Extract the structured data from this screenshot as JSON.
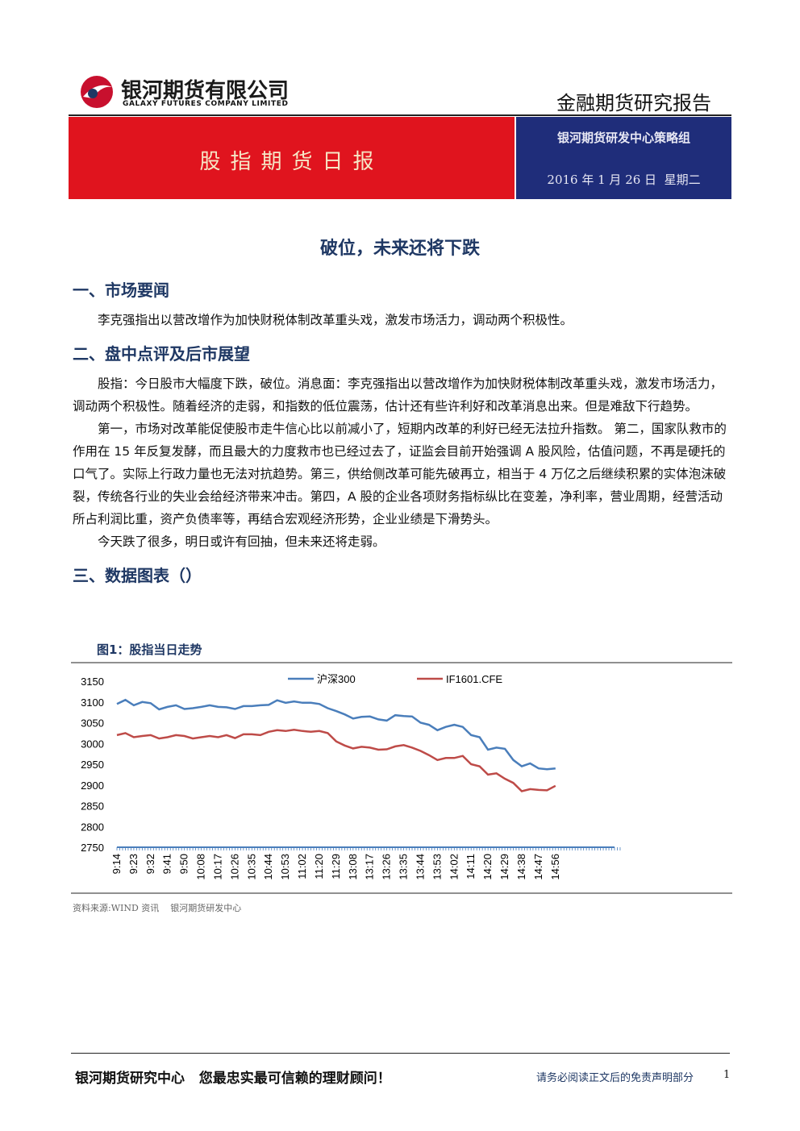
{
  "header": {
    "company_cn": "银河期货有限公司",
    "company_en": "GALAXY FUTURES COMPANY LIMITED",
    "report_type": "金融期货研究报告"
  },
  "banner": {
    "title": "股指期货日报",
    "group": "银河期货研发中心策略组",
    "date": "2016 年 1 月 26 日  星期二"
  },
  "headline": "破位，未来还将下跌",
  "sections": [
    {
      "heading": "一、市场要闻",
      "paragraphs": [
        "李克强指出以营改增作为加快财税体制改革重头戏，激发市场活力，调动两个积极性。"
      ]
    },
    {
      "heading": "二、盘中点评及后市展望",
      "paragraphs": [
        "股指：今日股市大幅度下跌，破位。消息面：李克强指出以营改增作为加快财税体制改革重头戏，激发市场活力，调动两个积极性。随着经济的走弱，和指数的低位震荡，估计还有些许利好和改革消息出来。但是难敌下行趋势。",
        "第一，市场对改革能促使股市走牛信心比以前减小了，短期内改革的利好已经无法拉升指数。 第二，国家队救市的作用在 15 年反复发酵，而且最大的力度救市也已经过去了，证监会目前开始强调 A 股风险，估值问题，不再是硬托的口气了。实际上行政力量也无法对抗趋势。第三，供给侧改革可能先破再立，相当于 4 万亿之后继续积累的实体泡沫破裂，传统各行业的失业会给经济带来冲击。第四，A 股的企业各项财务指标纵比在变差，净利率，营业周期，经营活动所占利润比重，资产负债率等，再结合宏观经济形势，企业业绩是下滑势头。",
        "今天跌了很多，明日或许有回抽，但未来还将走弱。"
      ]
    },
    {
      "heading": "三、数据图表（）",
      "paragraphs": []
    }
  ],
  "figure": {
    "caption": "图1：股指当日走势",
    "source": "资料来源:WIND 资讯    银河期货研发中心"
  },
  "chart_data": {
    "type": "line",
    "categories": [
      "9:14",
      null,
      "9:23",
      null,
      "9:32",
      null,
      "9:41",
      null,
      "9:50",
      null,
      "10:08",
      null,
      "10:17",
      null,
      "10:26",
      null,
      "10:35",
      null,
      "10:44",
      null,
      "10:53",
      null,
      "11:02",
      null,
      "11:20",
      null,
      "11:29",
      null,
      "13:08",
      null,
      "13:17",
      null,
      "13:26",
      null,
      "13:35",
      null,
      "13:44",
      null,
      "13:53",
      null,
      "14:02",
      null,
      "14:11",
      null,
      "14:20",
      null,
      "14:29",
      null,
      "14:38",
      null,
      "14:47",
      null,
      "14:56",
      null,
      null,
      null,
      null,
      null,
      null,
      null
    ],
    "series": [
      {
        "name": "沪深300",
        "color": "#4a7ebb",
        "values": [
          3095,
          3105,
          3092,
          3100,
          3097,
          3082,
          3088,
          3092,
          3083,
          3085,
          3088,
          3092,
          3088,
          3087,
          3083,
          3090,
          3090,
          3092,
          3093,
          3104,
          3098,
          3101,
          3098,
          3098,
          3095,
          3085,
          3078,
          3070,
          3060,
          3064,
          3065,
          3058,
          3055,
          3068,
          3066,
          3065,
          3050,
          3045,
          3032,
          3040,
          3045,
          3040,
          3020,
          3015,
          2985,
          2990,
          2987,
          2960,
          2945,
          2952,
          2940,
          2938,
          2940,
          null,
          null,
          null,
          null,
          null,
          null,
          null
        ]
      },
      {
        "name": "IF1601.CFE",
        "color": "#be4b48",
        "values": [
          3020,
          3025,
          3015,
          3018,
          3020,
          3012,
          3015,
          3020,
          3018,
          3012,
          3015,
          3018,
          3015,
          3020,
          3013,
          3022,
          3022,
          3020,
          3028,
          3032,
          3030,
          3033,
          3030,
          3028,
          3030,
          3025,
          3005,
          2995,
          2988,
          2992,
          2990,
          2985,
          2986,
          2993,
          2996,
          2990,
          2982,
          2972,
          2960,
          2965,
          2965,
          2970,
          2950,
          2945,
          2925,
          2928,
          2915,
          2905,
          2885,
          2890,
          2888,
          2887,
          2898,
          null,
          null,
          null,
          null,
          null,
          null,
          null
        ]
      }
    ],
    "ylim": [
      2750,
      3150
    ],
    "yticks": [
      2750,
      2800,
      2850,
      2900,
      2950,
      3000,
      3050,
      3100,
      3150
    ],
    "grid": false,
    "legend": "top"
  },
  "footer": {
    "slogan": "银河期货研究中心   您最忠实最可信赖的理财顾问！",
    "disclaimer": "请务必阅读正文后的免责声明部分",
    "page": "1"
  }
}
